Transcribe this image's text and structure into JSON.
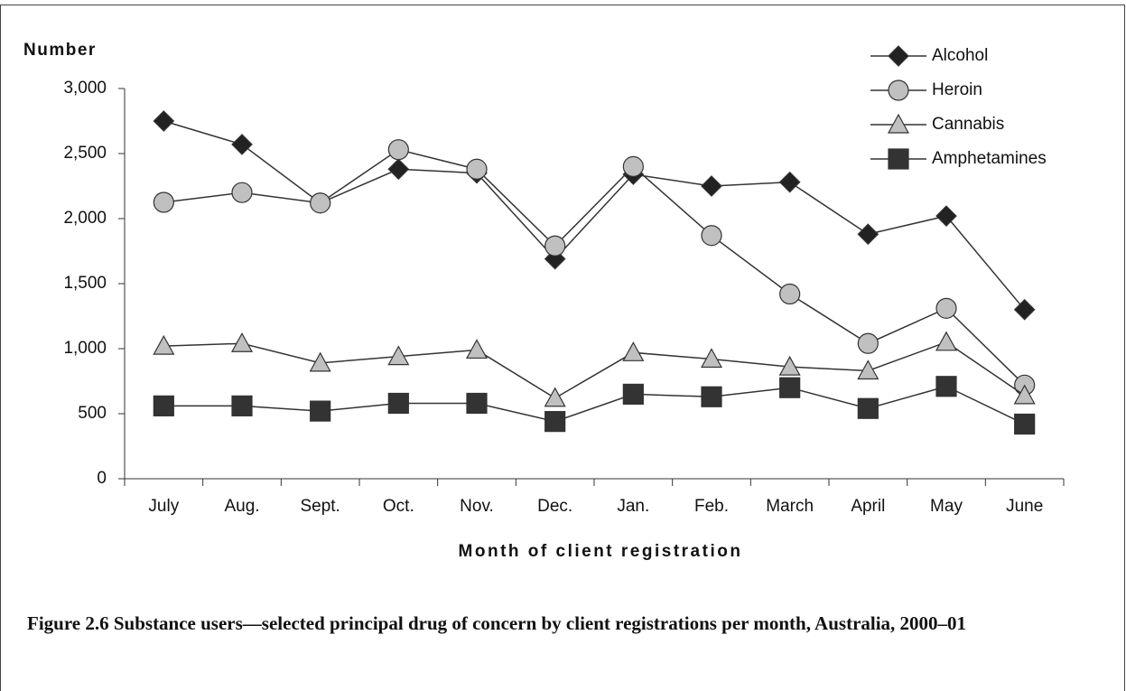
{
  "chart_data": {
    "type": "line",
    "y_label": "Number",
    "x_label": "Month of client registration",
    "caption": "Figure 2.6 Substance users—selected principal drug of concern by client registrations per month, Australia, 2000–01",
    "categories": [
      "July",
      "Aug.",
      "Sept.",
      "Oct.",
      "Nov.",
      "Dec.",
      "Jan.",
      "Feb.",
      "March",
      "April",
      "May",
      "June"
    ],
    "series": [
      {
        "name": "Alcohol",
        "color": "#222222",
        "marker": "diamond",
        "values": [
          2750,
          2570,
          2120,
          2380,
          2350,
          1690,
          2340,
          2250,
          2280,
          1880,
          2020,
          1300
        ]
      },
      {
        "name": "Heroin",
        "color": "#c0c0c0",
        "marker": "circle",
        "values": [
          2125,
          2200,
          2120,
          2530,
          2380,
          1790,
          2400,
          1870,
          1420,
          1040,
          1310,
          720
        ]
      },
      {
        "name": "Cannabis",
        "color": "#c0c0c0",
        "marker": "triangle",
        "values": [
          1020,
          1040,
          890,
          940,
          990,
          620,
          970,
          920,
          860,
          830,
          1050,
          640
        ]
      },
      {
        "name": "Amphetamines",
        "color": "#333333",
        "marker": "square",
        "values": [
          560,
          560,
          520,
          580,
          580,
          440,
          650,
          630,
          700,
          540,
          710,
          420
        ]
      }
    ],
    "ylim": [
      0,
      3000
    ],
    "yticks": [
      0,
      500,
      {
        "value": 1000,
        "label": "1,000"
      },
      {
        "value": 1500,
        "label": "1,500"
      },
      {
        "value": 2000,
        "label": "2,000"
      },
      {
        "value": 2500,
        "label": "2,500"
      },
      {
        "value": 3000,
        "label": "3,000"
      }
    ],
    "legend": "upper right"
  }
}
